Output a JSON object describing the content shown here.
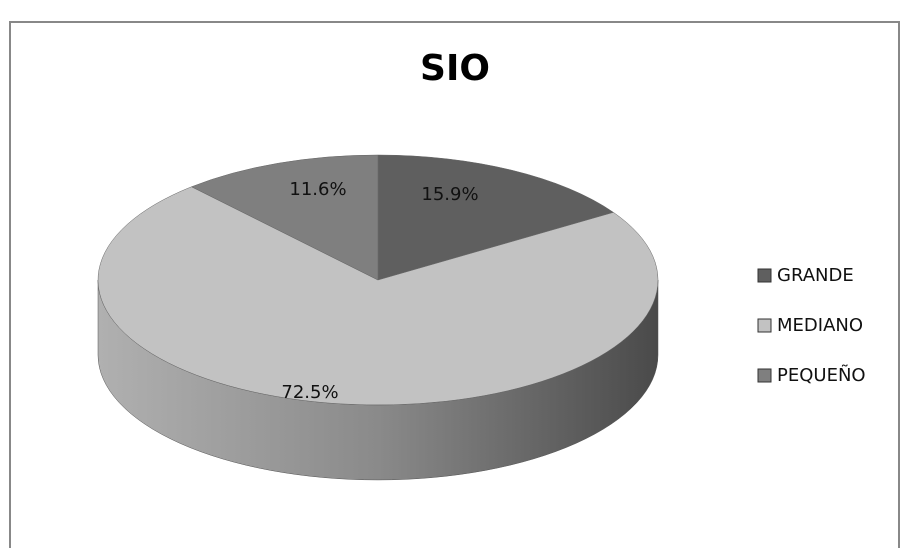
{
  "chart_data": {
    "type": "pie",
    "title": "SIO",
    "categories": [
      "GRANDE",
      "MEDIANO",
      "PEQUEÑO"
    ],
    "values": [
      15.9,
      72.5,
      11.6
    ],
    "value_labels": [
      "15.9%",
      "72.5%",
      "11.6%"
    ],
    "colors": [
      "#5f5f5f",
      "#c2c2c2",
      "#7f7f7f"
    ],
    "legend": "right"
  }
}
